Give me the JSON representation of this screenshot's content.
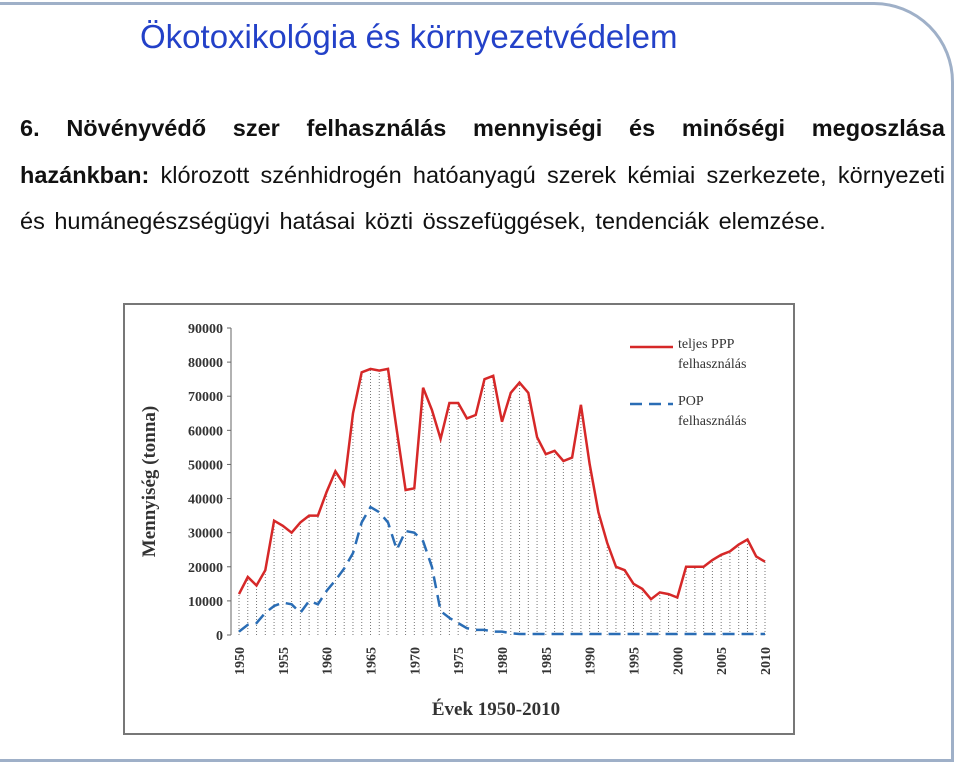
{
  "header": {
    "title": "Ökotoxikológia és környezetvédelem"
  },
  "body": {
    "bold": "6. Növényvédő szer felhasználás mennyiségi és minőségi megoszlása hazánkban:",
    "rest": "klórozott szénhidrogén hatóanyagú szerek kémiai szerkezete, környezeti és humánegészségügyi hatásai közti összefüggések, tendenciák elemzése."
  },
  "chart_data": {
    "type": "line",
    "ylabel": "Mennyiség (tonna)",
    "xlabel": "Évek 1950-2010",
    "x": [
      1950,
      1951,
      1952,
      1953,
      1954,
      1955,
      1956,
      1957,
      1958,
      1959,
      1960,
      1961,
      1962,
      1963,
      1964,
      1965,
      1966,
      1967,
      1968,
      1969,
      1970,
      1971,
      1972,
      1973,
      1974,
      1975,
      1976,
      1977,
      1978,
      1979,
      1980,
      1981,
      1982,
      1983,
      1984,
      1985,
      1986,
      1987,
      1988,
      1989,
      1990,
      1991,
      1992,
      1993,
      1994,
      1995,
      1996,
      1997,
      1998,
      1999,
      2000,
      2001,
      2002,
      2003,
      2004,
      2005,
      2006,
      2007,
      2008,
      2009,
      2010
    ],
    "xlim": [
      1950,
      2010
    ],
    "xticks": [
      1950,
      1955,
      1960,
      1965,
      1970,
      1975,
      1980,
      1985,
      1990,
      1995,
      2000,
      2005,
      2010
    ],
    "ylim": [
      0,
      90000
    ],
    "yticks": [
      0,
      10000,
      20000,
      30000,
      40000,
      50000,
      60000,
      70000,
      80000,
      90000
    ],
    "series": [
      {
        "name": "teljes PPP felhasználás",
        "color": "#d62828",
        "dash": false,
        "values": [
          12000,
          17000,
          14500,
          19000,
          33500,
          32000,
          30000,
          33000,
          35000,
          35000,
          42000,
          48000,
          44000,
          65000,
          77000,
          78000,
          77500,
          78000,
          60000,
          42500,
          43000,
          72500,
          66000,
          57500,
          68000,
          68000,
          63500,
          64500,
          75000,
          76000,
          62500,
          71000,
          74000,
          71000,
          58000,
          53000,
          54000,
          51000,
          52000,
          67500,
          50000,
          36000,
          27000,
          20000,
          19000,
          15000,
          13500,
          10500,
          12500,
          12000,
          11000,
          20000,
          20000,
          20000,
          22000,
          23500,
          24500,
          26500,
          28000,
          23000,
          21500
        ]
      },
      {
        "name": "POP felhasználás",
        "color": "#2a6db5",
        "dash": true,
        "values": [
          1000,
          3000,
          3500,
          6500,
          8500,
          9500,
          9000,
          6500,
          10000,
          9000,
          13000,
          16000,
          19500,
          24000,
          33000,
          37500,
          36000,
          33000,
          25000,
          30500,
          30000,
          27500,
          20000,
          7000,
          5000,
          3500,
          2000,
          1500,
          1500,
          1000,
          1000,
          500,
          300,
          300,
          300,
          300,
          300,
          300,
          300,
          300,
          300,
          300,
          300,
          300,
          300,
          300,
          300,
          300,
          300,
          300,
          300,
          300,
          300,
          300,
          300,
          300,
          300,
          300,
          300,
          300,
          300
        ]
      }
    ]
  }
}
